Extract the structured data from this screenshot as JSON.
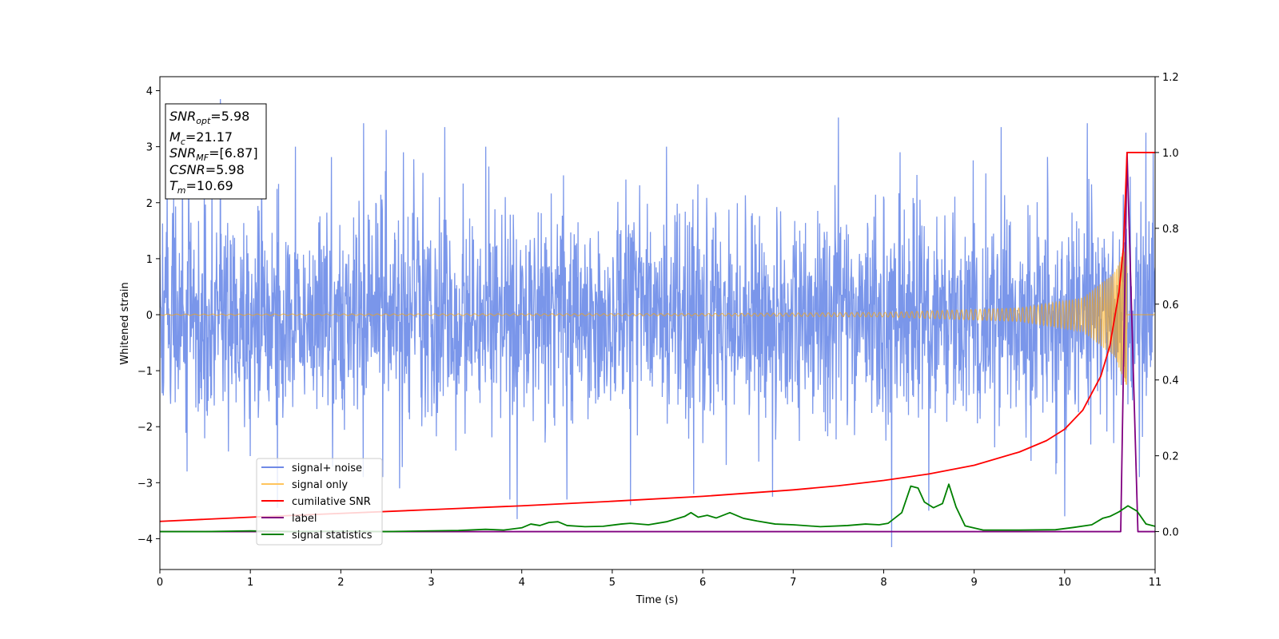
{
  "chart_data": {
    "type": "line",
    "xlabel": "Time (s)",
    "ylabel": "Whitened strain",
    "xlim": [
      0,
      11
    ],
    "ylim": [
      -4.55,
      4.25
    ],
    "y2lim": [
      -0.1,
      1.2
    ],
    "x_ticks": [
      "0",
      "1",
      "2",
      "3",
      "4",
      "5",
      "6",
      "7",
      "8",
      "9",
      "10",
      "11"
    ],
    "y_ticks": [
      "−4",
      "−3",
      "−2",
      "−1",
      "0",
      "1",
      "2",
      "3",
      "4"
    ],
    "y2_ticks": [
      "0.0",
      "0.2",
      "0.4",
      "0.6",
      "0.8",
      "1.0",
      "1.2"
    ],
    "grid": false,
    "legend_placement": "lower-left",
    "info_box": {
      "snr_opt": {
        "var": "SNR",
        "sub": "opt",
        "value": "=5.98"
      },
      "mc": {
        "var": "M",
        "sub": "c",
        "value": "=21.17"
      },
      "snr_mf": {
        "var": "SNR",
        "sub": "MF",
        "value": "=[6.87]"
      },
      "csnr": {
        "var": "CSNR",
        "sub": "",
        "value": "=5.98"
      },
      "tm": {
        "var": "T",
        "sub": "m",
        "value": "=10.69"
      }
    },
    "series": [
      {
        "name": "signal+ noise",
        "color": "#4169e1",
        "axis": "left",
        "typical_range": [
          -2.3,
          2.3
        ],
        "peaks": [
          {
            "x": 0.67,
            "y": 3.85
          },
          {
            "x": 0.25,
            "y": 3.0
          },
          {
            "x": 1.5,
            "y": 3.0
          },
          {
            "x": 2.25,
            "y": 3.42
          },
          {
            "x": 2.5,
            "y": 3.3
          },
          {
            "x": 3.15,
            "y": 3.35
          },
          {
            "x": 3.6,
            "y": 3.0
          },
          {
            "x": 5.6,
            "y": 3.0
          },
          {
            "x": 7.5,
            "y": 3.52
          },
          {
            "x": 9.3,
            "y": 3.35
          },
          {
            "x": 10.25,
            "y": 3.42
          },
          {
            "x": 10.9,
            "y": 3.25
          }
        ],
        "troughs": [
          {
            "x": 0.3,
            "y": -2.8
          },
          {
            "x": 1.3,
            "y": -3.45
          },
          {
            "x": 2.65,
            "y": -3.1
          },
          {
            "x": 3.87,
            "y": -3.3
          },
          {
            "x": 3.95,
            "y": -3.65
          },
          {
            "x": 4.5,
            "y": -3.3
          },
          {
            "x": 5.2,
            "y": -3.4
          },
          {
            "x": 5.9,
            "y": -3.2
          },
          {
            "x": 6.77,
            "y": -3.25
          },
          {
            "x": 8.09,
            "y": -4.15
          },
          {
            "x": 8.5,
            "y": -3.5
          },
          {
            "x": 10.0,
            "y": -3.6
          }
        ]
      },
      {
        "name": "signal only",
        "color": "#ffa500",
        "axis": "left",
        "description_points": [
          {
            "x": 0,
            "amp": 0.01
          },
          {
            "x": 6,
            "amp": 0.02
          },
          {
            "x": 8,
            "amp": 0.04
          },
          {
            "x": 9.5,
            "amp": 0.12
          },
          {
            "x": 10.2,
            "amp": 0.3
          },
          {
            "x": 10.55,
            "amp": 0.75
          },
          {
            "x": 10.69,
            "amp": 1.3
          }
        ]
      },
      {
        "name": "cumilative SNR",
        "color": "#ff0000",
        "axis": "right",
        "x": [
          0,
          1,
          2,
          3,
          4,
          5,
          6,
          7,
          7.5,
          8,
          8.5,
          9,
          9.5,
          9.8,
          10,
          10.2,
          10.4,
          10.5,
          10.6,
          10.65,
          10.69,
          11
        ],
        "y": [
          0.027,
          0.038,
          0.048,
          0.058,
          0.068,
          0.08,
          0.093,
          0.11,
          0.121,
          0.135,
          0.152,
          0.175,
          0.21,
          0.24,
          0.27,
          0.32,
          0.41,
          0.49,
          0.63,
          0.75,
          1.0,
          1.0
        ]
      },
      {
        "name": "label",
        "color": "#800080",
        "axis": "right",
        "x": [
          0,
          10.62,
          10.69,
          10.81,
          11
        ],
        "y": [
          0.0,
          0.0,
          1.0,
          0.0,
          0.0
        ]
      },
      {
        "name": "signal statistics",
        "color": "#008000",
        "axis": "right",
        "x": [
          0,
          0.5,
          1,
          1.5,
          2,
          2.5,
          3,
          3.3,
          3.6,
          3.8,
          4.0,
          4.1,
          4.2,
          4.3,
          4.4,
          4.5,
          4.7,
          4.9,
          5.1,
          5.2,
          5.4,
          5.6,
          5.8,
          5.87,
          5.95,
          6.05,
          6.15,
          6.3,
          6.45,
          6.6,
          6.8,
          7.0,
          7.3,
          7.6,
          7.8,
          7.95,
          8.05,
          8.2,
          8.3,
          8.38,
          8.45,
          8.55,
          8.65,
          8.72,
          8.8,
          8.9,
          9.1,
          9.5,
          9.9,
          10.1,
          10.3,
          10.42,
          10.5,
          10.6,
          10.7,
          10.8,
          10.9,
          11
        ],
        "y": [
          0.0,
          0.0,
          0.002,
          0.0,
          0.001,
          0.0,
          0.002,
          0.003,
          0.006,
          0.004,
          0.01,
          0.02,
          0.016,
          0.024,
          0.026,
          0.016,
          0.013,
          0.014,
          0.02,
          0.022,
          0.018,
          0.026,
          0.04,
          0.05,
          0.038,
          0.043,
          0.036,
          0.05,
          0.035,
          0.028,
          0.02,
          0.018,
          0.013,
          0.016,
          0.02,
          0.018,
          0.022,
          0.05,
          0.12,
          0.115,
          0.078,
          0.063,
          0.074,
          0.125,
          0.065,
          0.015,
          0.004,
          0.004,
          0.005,
          0.011,
          0.018,
          0.035,
          0.04,
          0.052,
          0.068,
          0.054,
          0.02,
          0.014
        ]
      }
    ]
  }
}
